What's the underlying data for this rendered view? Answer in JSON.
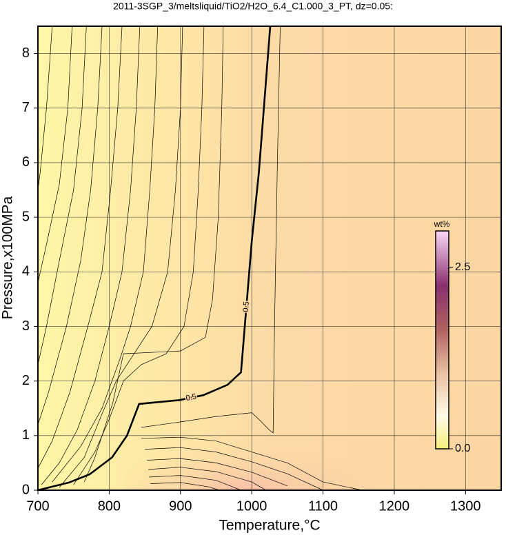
{
  "chart_data": {
    "type": "contour",
    "title": "2011-3SGP_3/meltsliquid/TiO2/H2O_6.4_C1.000_3_PT, dz=0.05:",
    "x_label": "Temperature,°C",
    "y_label": "Pressure,x100MPa",
    "xlim": [
      700,
      1350
    ],
    "ylim": [
      0,
      8.5
    ],
    "xticks": [
      700,
      800,
      900,
      1000,
      1100,
      1200,
      1300
    ],
    "yticks": [
      0,
      1,
      2,
      3,
      4,
      5,
      6,
      7,
      8
    ],
    "grid": true,
    "contours": [
      {
        "level": 0.5,
        "bold": true,
        "x": [
          700,
          743.5,
          772.5,
          804,
          825,
          842,
          898,
          932,
          966,
          985,
          1000,
          1010,
          1026
        ],
        "y": [
          0,
          0.14,
          0.29,
          0.6,
          1.0,
          1.58,
          1.65,
          1.74,
          1.93,
          2.16,
          4.56,
          5.82,
          8.5
        ]
      },
      {
        "x": [
          720,
          712,
          703,
          700
        ],
        "y": [
          8.5,
          7,
          5.8,
          5.5
        ]
      },
      {
        "x": [
          748,
          742,
          730,
          712,
          700
        ],
        "y": [
          8.5,
          7,
          5.6,
          4.5,
          3.8
        ]
      },
      {
        "x": [
          768,
          762,
          750,
          730,
          712,
          700
        ],
        "y": [
          8.5,
          7,
          5.5,
          4.2,
          3,
          2.3
        ]
      },
      {
        "x": [
          790,
          784,
          774,
          760,
          740,
          715,
          700
        ],
        "y": [
          8.5,
          7,
          5.5,
          4.2,
          3,
          1.8,
          1.2
        ]
      },
      {
        "x": [
          818,
          812,
          802,
          790,
          770,
          745,
          720,
          700
        ],
        "y": [
          8.5,
          7,
          5.5,
          4,
          3,
          1.8,
          0.9,
          0.4
        ]
      },
      {
        "x": [
          843,
          838,
          830,
          818,
          800,
          780,
          755,
          730,
          705
        ],
        "y": [
          8.5,
          7,
          5.5,
          4,
          3,
          2,
          1.1,
          0.5,
          0.1
        ]
      },
      {
        "x": [
          868,
          864,
          857,
          848,
          830,
          815,
          790,
          760,
          720
        ],
        "y": [
          8.5,
          7,
          5.5,
          4,
          3,
          2.4,
          1.5,
          0.8,
          0.15
        ]
      },
      {
        "x": [
          903,
          900,
          893,
          882,
          860,
          840,
          810,
          790,
          765,
          730
        ],
        "y": [
          8.5,
          7,
          5.5,
          4,
          3,
          2.6,
          2.0,
          1.4,
          0.6,
          0.05
        ]
      },
      {
        "x": [
          933,
          930,
          925,
          918,
          905,
          880,
          845,
          820,
          800,
          780,
          750
        ],
        "y": [
          8.5,
          7,
          5.5,
          4,
          3,
          2.5,
          2.3,
          2.0,
          1.3,
          0.7,
          0.1
        ]
      },
      {
        "x": [
          960,
          958,
          953,
          945,
          935,
          900,
          820,
          805,
          780,
          765
        ],
        "y": [
          8.5,
          7,
          5,
          3.5,
          2.8,
          2.55,
          2.5,
          1.6,
          0.6,
          0.15
        ]
      },
      {
        "x": [
          1040,
          1036,
          1032,
          1030,
          1025,
          1010,
          1000,
          950,
          900,
          845
        ],
        "y": [
          8.5,
          6,
          3,
          1.05,
          1.1,
          1.3,
          1.42,
          1.35,
          1.25,
          1.15
        ]
      },
      {
        "x": [
          845,
          900,
          950,
          1000,
          1050,
          1100,
          1155
        ],
        "y": [
          0.95,
          0.97,
          0.9,
          0.7,
          0.5,
          0.15,
          0
        ]
      },
      {
        "x": [
          850,
          900,
          950,
          1000,
          1050,
          1100
        ],
        "y": [
          0.75,
          0.78,
          0.7,
          0.52,
          0.3,
          0
        ]
      },
      {
        "x": [
          853,
          900,
          950,
          1000,
          1050
        ],
        "y": [
          0.55,
          0.58,
          0.5,
          0.33,
          0.08
        ]
      },
      {
        "x": [
          855,
          900,
          950,
          1000,
          1020
        ],
        "y": [
          0.38,
          0.42,
          0.34,
          0.15,
          0
        ]
      },
      {
        "x": [
          856,
          900,
          950,
          985
        ],
        "y": [
          0.24,
          0.27,
          0.18,
          0
        ]
      },
      {
        "x": [
          858,
          900,
          940,
          955
        ],
        "y": [
          0.12,
          0.14,
          0.06,
          0
        ]
      }
    ],
    "colorbar": {
      "label": "wt%",
      "lim": [
        0,
        3.0
      ],
      "ticks": [
        {
          "value": 0,
          "label": "0.0"
        },
        {
          "value": 2.5,
          "label": "2.5"
        }
      ]
    }
  }
}
